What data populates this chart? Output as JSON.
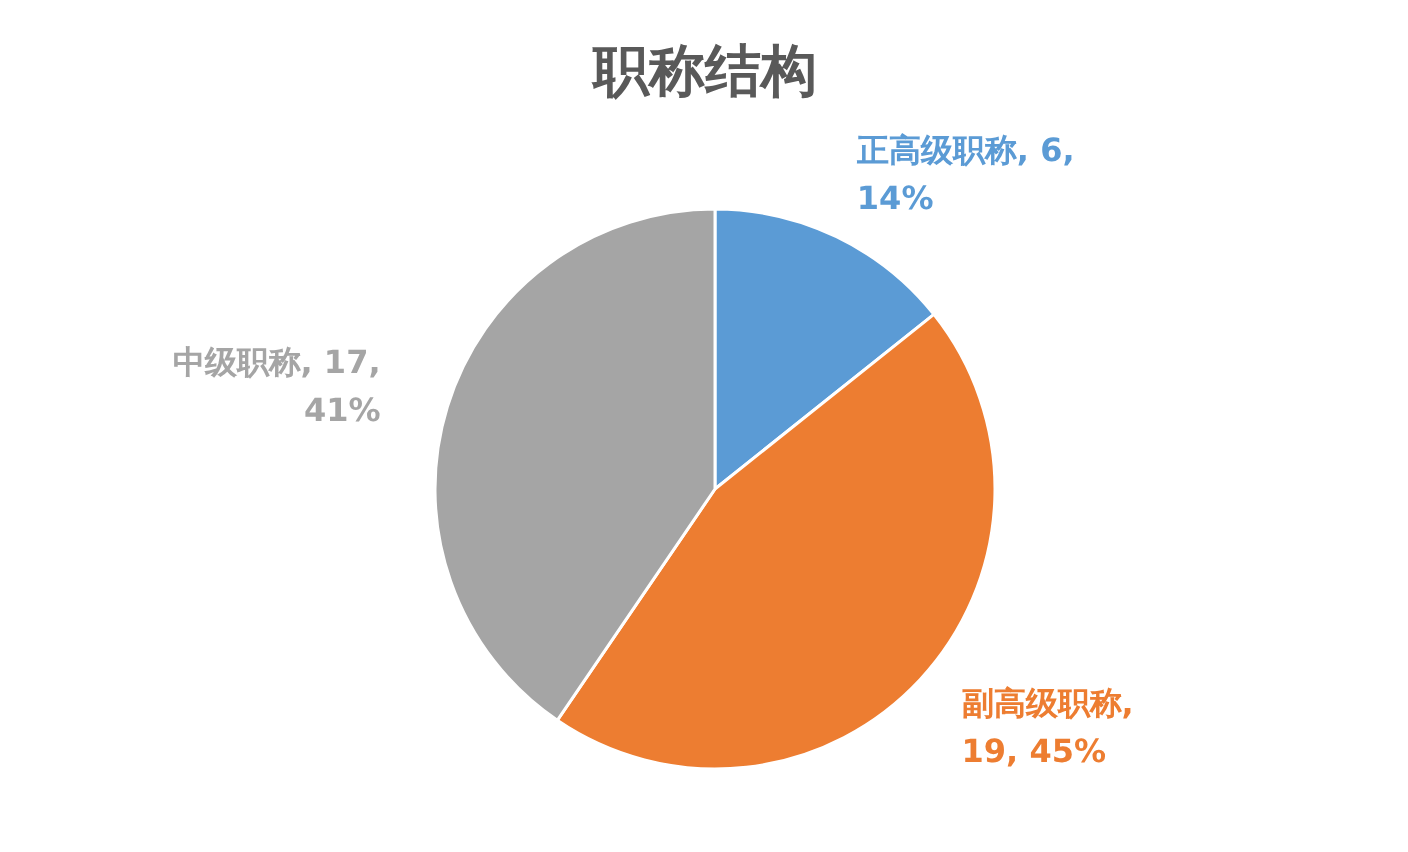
{
  "chart_data": {
    "type": "pie",
    "title": "职称结构",
    "categories": [
      "正高级职称",
      "副高级职称",
      "中级职称"
    ],
    "values": [
      6,
      19,
      17
    ],
    "colors": [
      "#5b9bd5",
      "#ed7d31",
      "#a5a5a5"
    ],
    "value_labels": [
      ", 6,\n14%",
      ",\n19, 45%",
      ", 17,\n41%"
    ]
  }
}
